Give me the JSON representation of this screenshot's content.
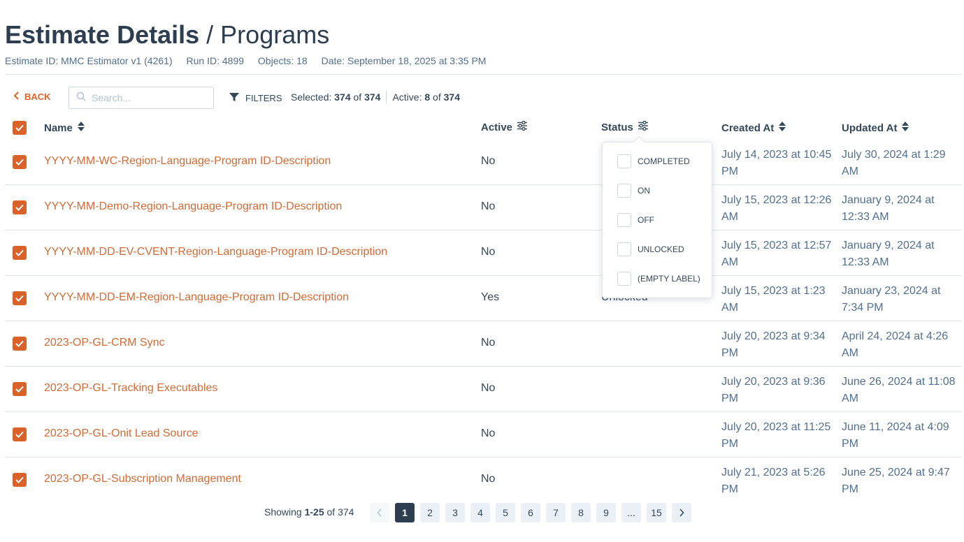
{
  "header": {
    "title_bold": "Estimate Details",
    "title_sep": "/",
    "title_light": "Programs",
    "meta": [
      "Estimate ID: MMC Estimator v1 (4261)",
      "Run ID: 4899",
      "Objects: 18",
      "Date: September 18, 2025 at 3:35 PM"
    ]
  },
  "toolbar": {
    "back_label": "BACK",
    "search_placeholder": "Search...",
    "filters_label": "FILTERS",
    "selected_label": "Selected:",
    "selected_count": "374",
    "selected_of": "of",
    "selected_total": "374",
    "active_label": "Active:",
    "active_count": "8",
    "active_of": "of",
    "active_total": "374"
  },
  "columns": {
    "name": "Name",
    "active": "Active",
    "status": "Status",
    "created": "Created At",
    "updated": "Updated At"
  },
  "rows": [
    {
      "name": "YYYY-MM-WC-Region-Language-Program ID-Description",
      "active": "No",
      "status": "",
      "created": "July 14, 2023 at 10:45 PM",
      "updated": "July 30, 2024 at 1:29 AM"
    },
    {
      "name": "YYYY-MM-Demo-Region-Language-Program ID-Description",
      "active": "No",
      "status": "",
      "created": "July 15, 2023 at 12:26 AM",
      "updated": "January 9, 2024 at 12:33 AM"
    },
    {
      "name": "YYYY-MM-DD-EV-CVENT-Region-Language-Program ID-Description",
      "active": "No",
      "status": "",
      "created": "July 15, 2023 at 12:57 AM",
      "updated": "January 9, 2024 at 12:33 AM"
    },
    {
      "name": "YYYY-MM-DD-EM-Region-Language-Program ID-Description",
      "active": "Yes",
      "status": "Unlocked",
      "created": "July 15, 2023 at 1:23 AM",
      "updated": "January 23, 2024 at 7:34 PM"
    },
    {
      "name": "2023-OP-GL-CRM Sync",
      "active": "No",
      "status": "",
      "created": "July 20, 2023 at 9:34 PM",
      "updated": "April 24, 2024 at 4:26 AM"
    },
    {
      "name": "2023-OP-GL-Tracking Executables",
      "active": "No",
      "status": "",
      "created": "July 20, 2023 at 9:36 PM",
      "updated": "June 26, 2024 at 11:08 AM"
    },
    {
      "name": "2023-OP-GL-Onit Lead Source",
      "active": "No",
      "status": "",
      "created": "July 20, 2023 at 11:25 PM",
      "updated": "June 11, 2024 at 4:09 PM"
    },
    {
      "name": "2023-OP-GL-Subscription Management",
      "active": "No",
      "status": "",
      "created": "July 21, 2023 at 5:26 PM",
      "updated": "June 25, 2024 at 9:47 PM"
    }
  ],
  "status_filter": {
    "options": [
      "COMPLETED",
      "ON",
      "OFF",
      "UNLOCKED",
      "(EMPTY LABEL)"
    ]
  },
  "pagination": {
    "showing_label": "Showing",
    "range": "1-25",
    "of_label": "of",
    "total": "374",
    "pages": [
      "1",
      "2",
      "3",
      "4",
      "5",
      "6",
      "7",
      "8",
      "9",
      "...",
      "15"
    ],
    "current": "1"
  },
  "colors": {
    "accent": "#d9622b",
    "link": "#d46a34",
    "text": "#33475b",
    "current_page": "#2d3e50"
  }
}
